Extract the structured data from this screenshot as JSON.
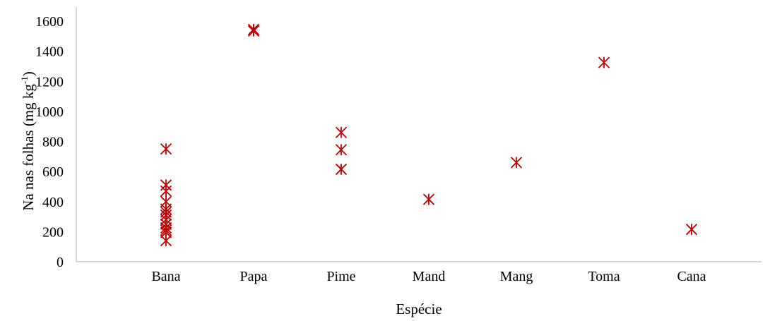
{
  "chart_data": {
    "type": "scatter",
    "xlabel": "Espécie",
    "ylabel": {
      "main": "Na nas folhas  (mg kg",
      "sup": "-1",
      "end": ")"
    },
    "categories": [
      "Bana",
      "Papa",
      "Pime",
      "Mand",
      "Mang",
      "Toma",
      "Cana"
    ],
    "ylim": [
      0,
      1600
    ],
    "yticks": [
      0,
      200,
      400,
      600,
      800,
      1000,
      1200,
      1400,
      1600
    ],
    "grid": false,
    "marker_color": "#c00000",
    "points": [
      {
        "category": "Bana",
        "y": 750
      },
      {
        "category": "Bana",
        "y": 510
      },
      {
        "category": "Bana",
        "y": 470
      },
      {
        "category": "Bana",
        "y": 400
      },
      {
        "category": "Bana",
        "y": 350
      },
      {
        "category": "Bana",
        "y": 330
      },
      {
        "category": "Bana",
        "y": 310
      },
      {
        "category": "Bana",
        "y": 280
      },
      {
        "category": "Bana",
        "y": 250
      },
      {
        "category": "Bana",
        "y": 225
      },
      {
        "category": "Bana",
        "y": 210
      },
      {
        "category": "Bana",
        "y": 195
      },
      {
        "category": "Bana",
        "y": 140
      },
      {
        "category": "Papa",
        "y": 1545
      },
      {
        "category": "Papa",
        "y": 1535
      },
      {
        "category": "Pime",
        "y": 860
      },
      {
        "category": "Pime",
        "y": 745
      },
      {
        "category": "Pime",
        "y": 615
      },
      {
        "category": "Mand",
        "y": 415
      },
      {
        "category": "Mang",
        "y": 660
      },
      {
        "category": "Toma",
        "y": 1325
      },
      {
        "category": "Cana",
        "y": 215
      }
    ]
  }
}
